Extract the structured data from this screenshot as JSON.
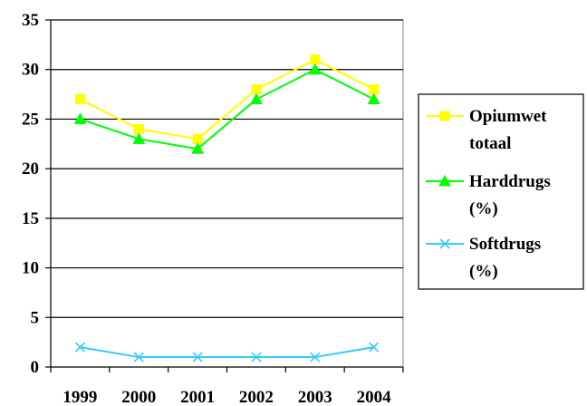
{
  "chart_data": {
    "type": "line",
    "categories": [
      "1999",
      "2000",
      "2001",
      "2002",
      "2003",
      "2004"
    ],
    "ylim": [
      0,
      35
    ],
    "yticks": [
      "0",
      "5",
      "10",
      "15",
      "20",
      "25",
      "30",
      "35"
    ],
    "grid": true,
    "legend_position": "right",
    "series": [
      {
        "name_lines": [
          "Opiumwet",
          "totaal"
        ],
        "color": "#FFFF00",
        "marker": "square",
        "values": [
          27,
          24,
          23,
          28,
          31,
          28
        ]
      },
      {
        "name_lines": [
          "Harddrugs",
          "(%)"
        ],
        "color": "#00FF00",
        "marker": "triangle",
        "values": [
          25,
          23,
          22,
          27,
          30,
          27
        ]
      },
      {
        "name_lines": [
          "Softdrugs",
          "(%)"
        ],
        "color": "#33CCFF",
        "marker": "x",
        "values": [
          2,
          1,
          1,
          1,
          1,
          2
        ]
      }
    ]
  }
}
